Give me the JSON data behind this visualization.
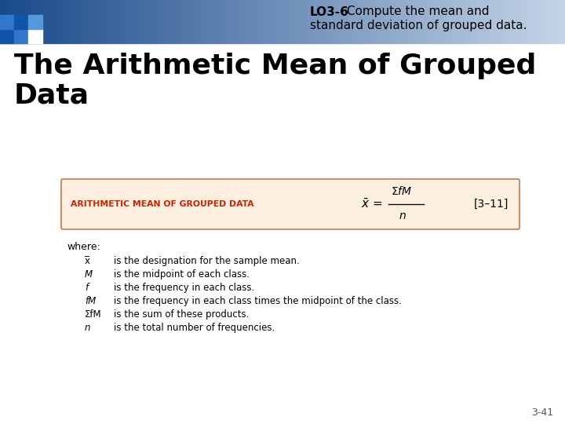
{
  "bg_color": "#ffffff",
  "header_text_bold": "LO3-6",
  "header_text_line1_normal": " Compute the mean and",
  "header_text_line2": "standard deviation of grouped data.",
  "header_text_color": "#000000",
  "title_line1": "The Arithmetic Mean of Grouped",
  "title_line2": "Data",
  "title_color": "#000000",
  "title_fontsize": 26,
  "box_bg": "#fdf0e0",
  "box_border": "#c8906a",
  "box_label": "ARITHMETIC MEAN OF GROUPED DATA",
  "box_label_color": "#cc2200",
  "box_ref": "[3–11]",
  "box_ref_color": "#000000",
  "where_text": "where:",
  "definitions": [
    [
      "x̅",
      "is the designation for the sample mean."
    ],
    [
      "M",
      "is the midpoint of each class."
    ],
    [
      "f",
      "is the frequency in each class."
    ],
    [
      "fM",
      "is the frequency in each class times the midpoint of the class."
    ],
    [
      "ΣfM",
      "is the sum of these products."
    ],
    [
      "n",
      "is the total number of frequencies."
    ]
  ],
  "def_color": "#000000",
  "page_num": "3-41",
  "page_num_color": "#555555"
}
